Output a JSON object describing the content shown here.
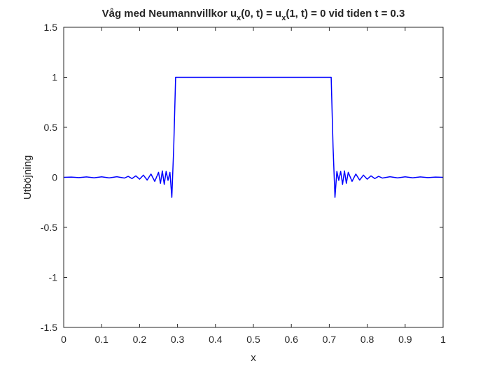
{
  "chart_data": {
    "type": "line",
    "title": {
      "prefix": "Våg med Neumannvillkor u",
      "sub1": "x",
      "middle": "(0, t) = u",
      "sub2": "x",
      "suffix": "(1, t) = 0 vid tiden t = 0.3"
    },
    "xlabel": "x",
    "ylabel": "Utböjning",
    "xlim": [
      0,
      1
    ],
    "ylim": [
      -1.5,
      1.5
    ],
    "x_ticks": [
      "0",
      "0.1",
      "0.2",
      "0.3",
      "0.4",
      "0.5",
      "0.6",
      "0.7",
      "0.8",
      "0.9",
      "1"
    ],
    "y_ticks": [
      "1.5",
      "1",
      "0.5",
      "0",
      "-0.5",
      "-1",
      "-1.5"
    ],
    "grid": false,
    "line_color": "#0000ff",
    "series": [
      {
        "x": [
          0,
          0.02,
          0.04,
          0.06,
          0.08,
          0.1,
          0.12,
          0.14,
          0.16,
          0.17,
          0.18,
          0.19,
          0.2,
          0.21,
          0.22,
          0.23,
          0.24,
          0.25,
          0.255,
          0.26,
          0.265,
          0.27,
          0.275,
          0.28,
          0.285,
          0.29,
          0.295,
          0.3,
          0.5,
          0.7,
          0.705,
          0.71,
          0.715,
          0.72,
          0.725,
          0.73,
          0.735,
          0.74,
          0.745,
          0.75,
          0.76,
          0.77,
          0.78,
          0.79,
          0.8,
          0.81,
          0.82,
          0.83,
          0.84,
          0.86,
          0.88,
          0.9,
          0.92,
          0.94,
          0.96,
          0.98,
          1
        ],
        "y": [
          0,
          0.003,
          -0.003,
          0.004,
          -0.004,
          0.005,
          -0.005,
          0.006,
          -0.007,
          0.01,
          -0.012,
          0.015,
          -0.018,
          0.022,
          -0.027,
          0.033,
          -0.04,
          0.05,
          -0.06,
          0.065,
          -0.07,
          0.06,
          -0.03,
          0.05,
          -0.2,
          0.3,
          1,
          1,
          1,
          1,
          1,
          0.3,
          -0.2,
          0.06,
          -0.03,
          0.06,
          -0.07,
          0.065,
          -0.06,
          0.05,
          -0.04,
          0.033,
          -0.027,
          0.022,
          -0.018,
          0.015,
          -0.012,
          0.01,
          -0.007,
          0.006,
          -0.005,
          0.005,
          -0.004,
          0.004,
          -0.003,
          0.003,
          0
        ]
      }
    ]
  }
}
